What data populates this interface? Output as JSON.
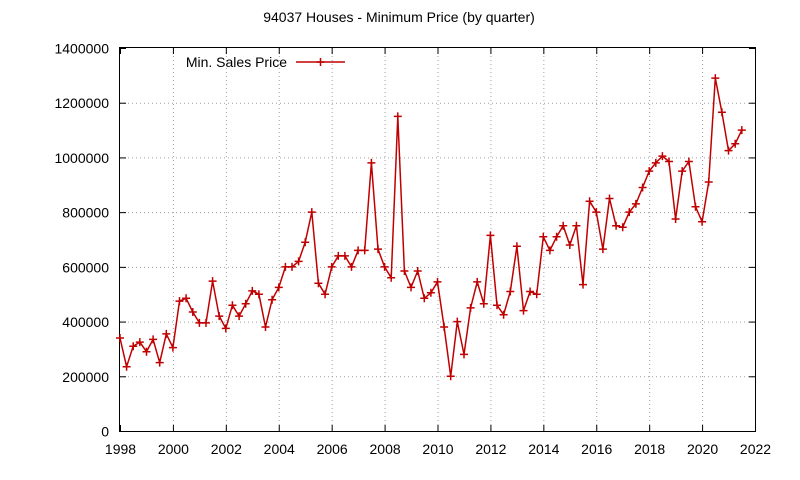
{
  "chart_data": {
    "type": "line",
    "title": "94037 Houses - Minimum Price (by quarter)",
    "xlabel": "",
    "ylabel": "",
    "xlim": [
      1998,
      2022
    ],
    "ylim": [
      0,
      1400000
    ],
    "x_ticks": [
      "1998",
      "2000",
      "2002",
      "2004",
      "2006",
      "2008",
      "2010",
      "2012",
      "2014",
      "2016",
      "2018",
      "2020",
      "2022"
    ],
    "x_tick_values": [
      1998,
      2000,
      2002,
      2004,
      2006,
      2008,
      2010,
      2012,
      2014,
      2016,
      2018,
      2020,
      2022
    ],
    "y_ticks": [
      "0",
      "200000",
      "400000",
      "600000",
      "800000",
      "1000000",
      "1200000",
      "1400000"
    ],
    "y_tick_values": [
      0,
      200000,
      400000,
      600000,
      800000,
      1000000,
      1200000,
      1400000
    ],
    "grid": true,
    "legend_position": "top-left",
    "series": [
      {
        "name": "Min. Sales Price",
        "color": "#c00000",
        "marker": "plus",
        "x": [
          1998.0,
          1998.25,
          1998.5,
          1998.75,
          1999.0,
          1999.25,
          1999.5,
          1999.75,
          2000.0,
          2000.25,
          2000.5,
          2000.75,
          2001.0,
          2001.25,
          2001.5,
          2001.75,
          2002.0,
          2002.25,
          2002.5,
          2002.75,
          2003.0,
          2003.25,
          2003.5,
          2003.75,
          2004.0,
          2004.25,
          2004.5,
          2004.75,
          2005.0,
          2005.25,
          2005.5,
          2005.75,
          2006.0,
          2006.25,
          2006.5,
          2006.75,
          2007.0,
          2007.25,
          2007.5,
          2007.75,
          2008.0,
          2008.25,
          2008.5,
          2008.75,
          2009.0,
          2009.25,
          2009.5,
          2009.75,
          2010.0,
          2010.25,
          2010.5,
          2010.75,
          2011.0,
          2011.25,
          2011.5,
          2011.75,
          2012.0,
          2012.25,
          2012.5,
          2012.75,
          2013.0,
          2013.25,
          2013.5,
          2013.75,
          2014.0,
          2014.25,
          2014.5,
          2014.75,
          2015.0,
          2015.25,
          2015.5,
          2015.75,
          2016.0,
          2016.25,
          2016.5,
          2016.75,
          2017.0,
          2017.25,
          2017.5,
          2017.75,
          2018.0,
          2018.25,
          2018.5,
          2018.75,
          2019.0,
          2019.25,
          2019.5,
          2019.75,
          2020.0,
          2020.25,
          2020.5,
          2020.75,
          2021.0,
          2021.25,
          2021.5
        ],
        "values": [
          340000,
          235000,
          310000,
          325000,
          290000,
          335000,
          250000,
          355000,
          305000,
          475000,
          485000,
          435000,
          395000,
          395000,
          548000,
          420000,
          375000,
          460000,
          420000,
          465000,
          512000,
          500000,
          380000,
          480000,
          525000,
          600000,
          600000,
          620000,
          690000,
          800000,
          540000,
          500000,
          600000,
          640000,
          640000,
          600000,
          660000,
          660000,
          980000,
          665000,
          600000,
          560000,
          1150000,
          585000,
          525000,
          585000,
          485000,
          505000,
          545000,
          380000,
          200000,
          400000,
          280000,
          450000,
          545000,
          465000,
          715000,
          460000,
          425000,
          510000,
          675000,
          440000,
          510000,
          500000,
          710000,
          660000,
          710000,
          750000,
          680000,
          750000,
          535000,
          840000,
          800000,
          665000,
          850000,
          750000,
          745000,
          800000,
          830000,
          890000,
          950000,
          980000,
          1005000,
          985000,
          775000,
          950000,
          985000,
          820000,
          765000,
          910000,
          1290000,
          1165000,
          1025000,
          1050000,
          1100000
        ]
      }
    ]
  }
}
